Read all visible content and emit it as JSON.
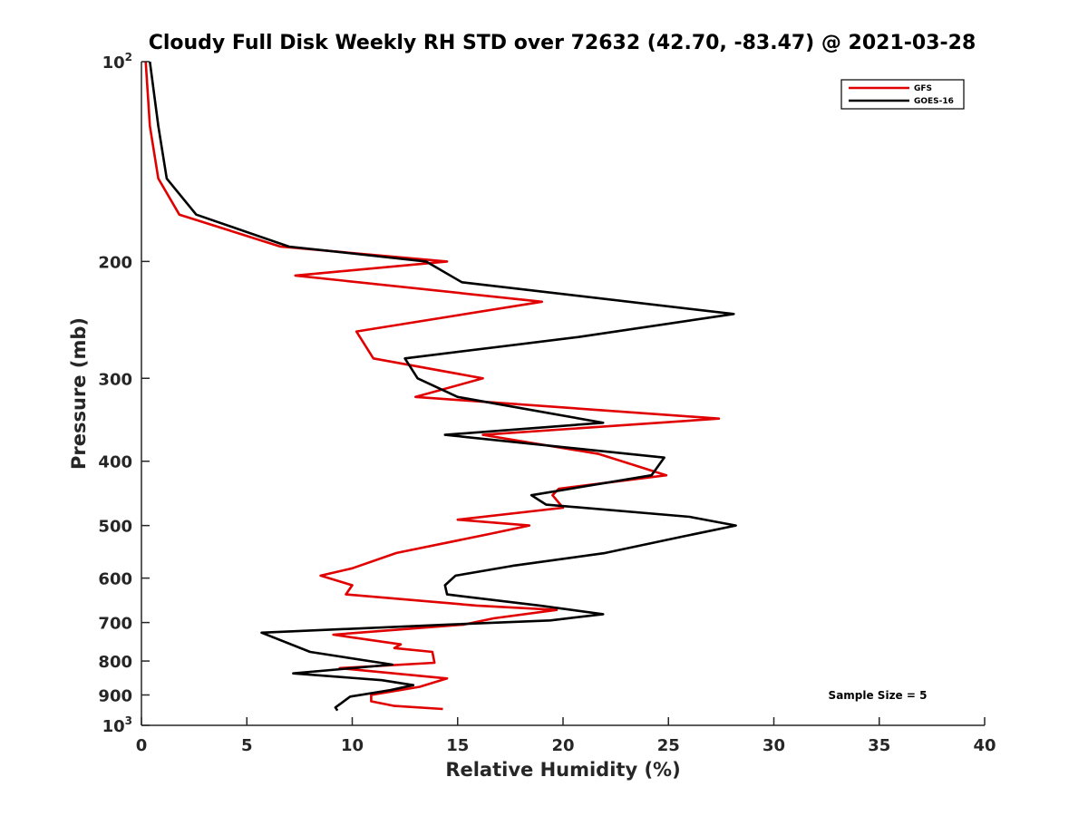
{
  "chart_data": {
    "type": "line",
    "title": "Cloudy Full Disk Weekly RH STD over 72632 (42.70, -83.47) @ 2021-03-28",
    "xlabel": "Relative Humidity (%)",
    "ylabel": "Pressure (mb)",
    "xlim": [
      0,
      40
    ],
    "ylim": [
      100,
      1000
    ],
    "y_scale": "log",
    "y_reversed": true,
    "x_ticks": [
      "0",
      "5",
      "10",
      "15",
      "20",
      "25",
      "30",
      "35",
      "40"
    ],
    "y_ticks": [
      {
        "value": 100,
        "base": "10",
        "exp": "2"
      },
      {
        "value": 200,
        "label": "200"
      },
      {
        "value": 300,
        "label": "300"
      },
      {
        "value": 400,
        "label": "400"
      },
      {
        "value": 500,
        "label": "500"
      },
      {
        "value": 600,
        "label": "600"
      },
      {
        "value": 700,
        "label": "700"
      },
      {
        "value": 800,
        "label": "800"
      },
      {
        "value": 900,
        "label": "900"
      },
      {
        "value": 1000,
        "base": "10",
        "exp": "3"
      }
    ],
    "grid": false,
    "legend_position": "top-right",
    "annotation": "Sample Size = 5",
    "series": [
      {
        "name": "GFS",
        "color": "#e00000",
        "points": [
          [
            0.2,
            100
          ],
          [
            0.4,
            125
          ],
          [
            0.8,
            150
          ],
          [
            1.8,
            170
          ],
          [
            6.6,
            190
          ],
          [
            14.5,
            200
          ],
          [
            7.3,
            210
          ],
          [
            19.0,
            230
          ],
          [
            10.2,
            255
          ],
          [
            11.0,
            280
          ],
          [
            16.2,
            300
          ],
          [
            13.0,
            320
          ],
          [
            27.4,
            345
          ],
          [
            16.2,
            365
          ],
          [
            21.7,
            390
          ],
          [
            24.9,
            420
          ],
          [
            19.8,
            440
          ],
          [
            19.5,
            450
          ],
          [
            20.0,
            470
          ],
          [
            15.0,
            490
          ],
          [
            18.4,
            500
          ],
          [
            16.5,
            515
          ],
          [
            12.1,
            550
          ],
          [
            10.0,
            580
          ],
          [
            8.5,
            595
          ],
          [
            10.0,
            615
          ],
          [
            9.7,
            635
          ],
          [
            15.9,
            660
          ],
          [
            19.7,
            670
          ],
          [
            16.7,
            690
          ],
          [
            15.3,
            705
          ],
          [
            9.1,
            730
          ],
          [
            12.3,
            755
          ],
          [
            12.0,
            765
          ],
          [
            13.8,
            775
          ],
          [
            13.9,
            805
          ],
          [
            9.4,
            820
          ],
          [
            14.5,
            850
          ],
          [
            13.2,
            875
          ],
          [
            10.9,
            900
          ],
          [
            10.9,
            920
          ],
          [
            12.0,
            935
          ],
          [
            14.3,
            945
          ]
        ]
      },
      {
        "name": "GOES-16",
        "color": "#000000",
        "points": [
          [
            0.4,
            100
          ],
          [
            0.8,
            125
          ],
          [
            1.2,
            150
          ],
          [
            2.6,
            170
          ],
          [
            7.0,
            190
          ],
          [
            13.5,
            200
          ],
          [
            15.2,
            215
          ],
          [
            28.1,
            240
          ],
          [
            20.7,
            260
          ],
          [
            12.5,
            280
          ],
          [
            13.1,
            300
          ],
          [
            15.0,
            320
          ],
          [
            21.9,
            350
          ],
          [
            14.4,
            365
          ],
          [
            24.8,
            395
          ],
          [
            24.2,
            420
          ],
          [
            18.5,
            450
          ],
          [
            19.2,
            465
          ],
          [
            26.0,
            485
          ],
          [
            28.2,
            500
          ],
          [
            25.6,
            520
          ],
          [
            22.0,
            550
          ],
          [
            17.6,
            575
          ],
          [
            14.9,
            595
          ],
          [
            14.4,
            615
          ],
          [
            14.5,
            635
          ],
          [
            18.9,
            660
          ],
          [
            21.9,
            680
          ],
          [
            19.4,
            695
          ],
          [
            14.5,
            705
          ],
          [
            5.7,
            725
          ],
          [
            8.0,
            775
          ],
          [
            11.9,
            810
          ],
          [
            7.2,
            835
          ],
          [
            11.4,
            855
          ],
          [
            12.9,
            870
          ],
          [
            11.8,
            885
          ],
          [
            9.9,
            905
          ],
          [
            9.5,
            925
          ],
          [
            9.2,
            940
          ],
          [
            9.3,
            950
          ]
        ]
      }
    ]
  }
}
